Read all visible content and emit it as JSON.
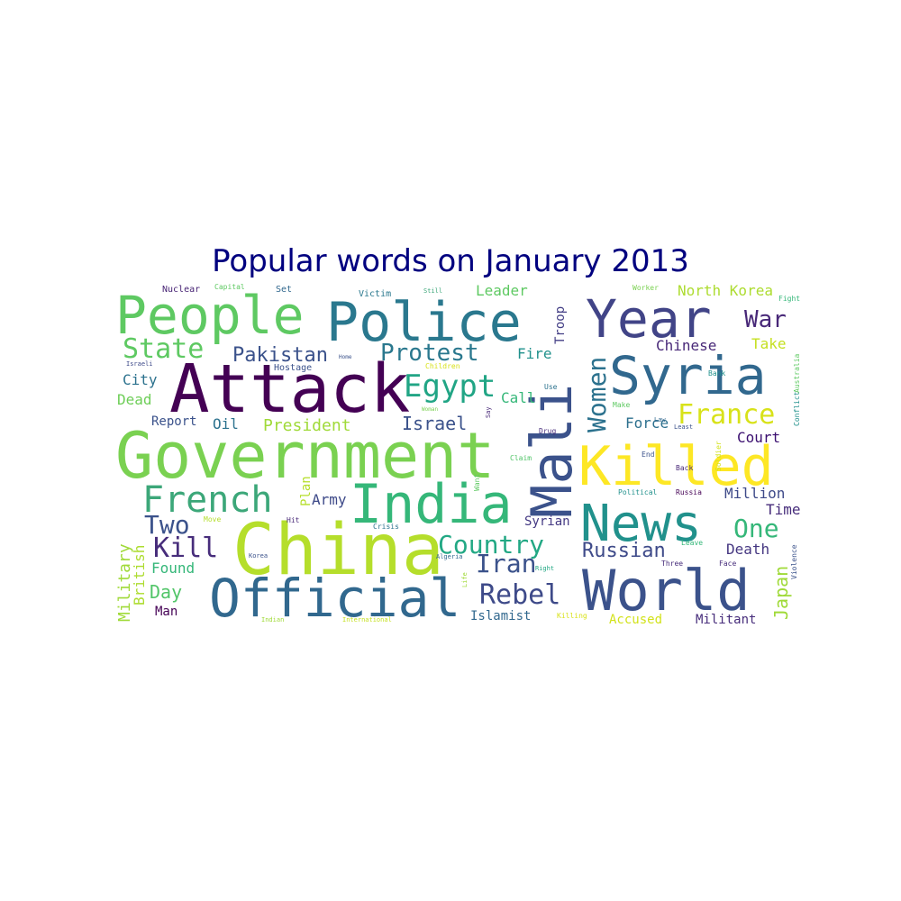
{
  "chart_data": {
    "type": "wordcloud",
    "title": "Popular words on January 2013",
    "colormap": "viridis",
    "words": [
      {
        "text": "Attack",
        "color": "#440154"
      },
      {
        "text": "Government",
        "color": "#7ad151"
      },
      {
        "text": "China",
        "color": "#b5de2b"
      },
      {
        "text": "Police",
        "color": "#2a788e"
      },
      {
        "text": "People",
        "color": "#5ec962"
      },
      {
        "text": "Year",
        "color": "#414487"
      },
      {
        "text": "Syria",
        "color": "#31688e"
      },
      {
        "text": "Mali",
        "color": "#3b528b"
      },
      {
        "text": "Killed",
        "color": "#fde725"
      },
      {
        "text": "India",
        "color": "#35b779"
      },
      {
        "text": "World",
        "color": "#3b528b"
      },
      {
        "text": "Official",
        "color": "#31688e"
      },
      {
        "text": "News",
        "color": "#21918c"
      },
      {
        "text": "French",
        "color": "#3ca779"
      },
      {
        "text": "State",
        "color": "#5ec962"
      },
      {
        "text": "Pakistan",
        "color": "#3b528b"
      },
      {
        "text": "Protest",
        "color": "#2a788e"
      },
      {
        "text": "Egypt",
        "color": "#21a585"
      },
      {
        "text": "Country",
        "color": "#22a884"
      },
      {
        "text": "Rebel",
        "color": "#3e4a89"
      },
      {
        "text": "France",
        "color": "#d8e219"
      },
      {
        "text": "Women",
        "color": "#2c728e"
      },
      {
        "text": "Two",
        "color": "#3b528b"
      },
      {
        "text": "Kill",
        "color": "#472d7b"
      },
      {
        "text": "One",
        "color": "#35b779"
      },
      {
        "text": "Iran",
        "color": "#3b528b"
      },
      {
        "text": "Russian",
        "color": "#3e4a89"
      },
      {
        "text": "War",
        "color": "#482878"
      },
      {
        "text": "Japan",
        "color": "#a0da39"
      },
      {
        "text": "Israel",
        "color": "#3b528b"
      },
      {
        "text": "President",
        "color": "#a0da39"
      },
      {
        "text": "Leader",
        "color": "#5ec962"
      },
      {
        "text": "North Korea",
        "color": "#addc30"
      },
      {
        "text": "Chinese",
        "color": "#482878"
      },
      {
        "text": "Take",
        "color": "#c5e021"
      },
      {
        "text": "Fire",
        "color": "#21918c"
      },
      {
        "text": "Troop",
        "color": "#433e85"
      },
      {
        "text": "Call",
        "color": "#35b779"
      },
      {
        "text": "Force",
        "color": "#2d708e"
      },
      {
        "text": "Court",
        "color": "#3b0f70"
      },
      {
        "text": "Million",
        "color": "#3e4a89"
      },
      {
        "text": "Time",
        "color": "#472d7b"
      },
      {
        "text": "Death",
        "color": "#453781"
      },
      {
        "text": "Islamist",
        "color": "#31688e"
      },
      {
        "text": "Accused",
        "color": "#d2e21b"
      },
      {
        "text": "Militant",
        "color": "#472d7b"
      },
      {
        "text": "Syrian",
        "color": "#443983"
      },
      {
        "text": "Army",
        "color": "#3e4a89"
      },
      {
        "text": "Plan",
        "color": "#b5de2b"
      },
      {
        "text": "Report",
        "color": "#3b528b"
      },
      {
        "text": "Oil",
        "color": "#2c728e"
      },
      {
        "text": "City",
        "color": "#2c728e"
      },
      {
        "text": "Dead",
        "color": "#6ece58"
      },
      {
        "text": "Military",
        "color": "#a0da39"
      },
      {
        "text": "British",
        "color": "#addc30"
      },
      {
        "text": "Found",
        "color": "#35b779"
      },
      {
        "text": "Day",
        "color": "#52c569"
      },
      {
        "text": "Man",
        "color": "#440154"
      },
      {
        "text": "Nuclear",
        "color": "#482475"
      },
      {
        "text": "Capital",
        "color": "#5ec962"
      },
      {
        "text": "Set",
        "color": "#31688e"
      },
      {
        "text": "Victim",
        "color": "#2a788e"
      },
      {
        "text": "Still",
        "color": "#3ca779"
      },
      {
        "text": "Worker",
        "color": "#7ad151"
      },
      {
        "text": "Fight",
        "color": "#35b779"
      },
      {
        "text": "Hostage",
        "color": "#3b528b"
      },
      {
        "text": "Home",
        "color": "#3b528b"
      },
      {
        "text": "Children",
        "color": "#d8e219"
      },
      {
        "text": "Woman",
        "color": "#7ad151"
      },
      {
        "text": "Use",
        "color": "#2c728e"
      },
      {
        "text": "Make",
        "color": "#5ec962"
      },
      {
        "text": "Bank",
        "color": "#21918c"
      },
      {
        "text": "Conflict",
        "color": "#21918c"
      },
      {
        "text": "Australia",
        "color": "#5ec962"
      },
      {
        "text": "Law",
        "color": "#31688e"
      },
      {
        "text": "Least",
        "color": "#3b528b"
      },
      {
        "text": "Drug",
        "color": "#472d7b"
      },
      {
        "text": "End",
        "color": "#3b528b"
      },
      {
        "text": "Soldier",
        "color": "#d2e21b"
      },
      {
        "text": "Back",
        "color": "#482878"
      },
      {
        "text": "Claim",
        "color": "#52c569"
      },
      {
        "text": "Want",
        "color": "#5ec962"
      },
      {
        "text": "Say",
        "color": "#482878"
      },
      {
        "text": "Political",
        "color": "#21918c"
      },
      {
        "text": "Russia",
        "color": "#440154"
      },
      {
        "text": "Move",
        "color": "#b5de2b"
      },
      {
        "text": "Hit",
        "color": "#482878"
      },
      {
        "text": "Crisis",
        "color": "#2c728e"
      },
      {
        "text": "Korea",
        "color": "#3b528b"
      },
      {
        "text": "Algeria",
        "color": "#31688e"
      },
      {
        "text": "Right",
        "color": "#22a884"
      },
      {
        "text": "Leave",
        "color": "#35b779"
      },
      {
        "text": "Three",
        "color": "#472d7b"
      },
      {
        "text": "Face",
        "color": "#472d7b"
      },
      {
        "text": "Violence",
        "color": "#3b528b"
      },
      {
        "text": "Israeli",
        "color": "#3e4a89"
      },
      {
        "text": "Indian",
        "color": "#a0da39"
      },
      {
        "text": "International",
        "color": "#c5e021"
      },
      {
        "text": "Life",
        "color": "#a0da39"
      },
      {
        "text": "Killing",
        "color": "#d8e219"
      }
    ]
  }
}
